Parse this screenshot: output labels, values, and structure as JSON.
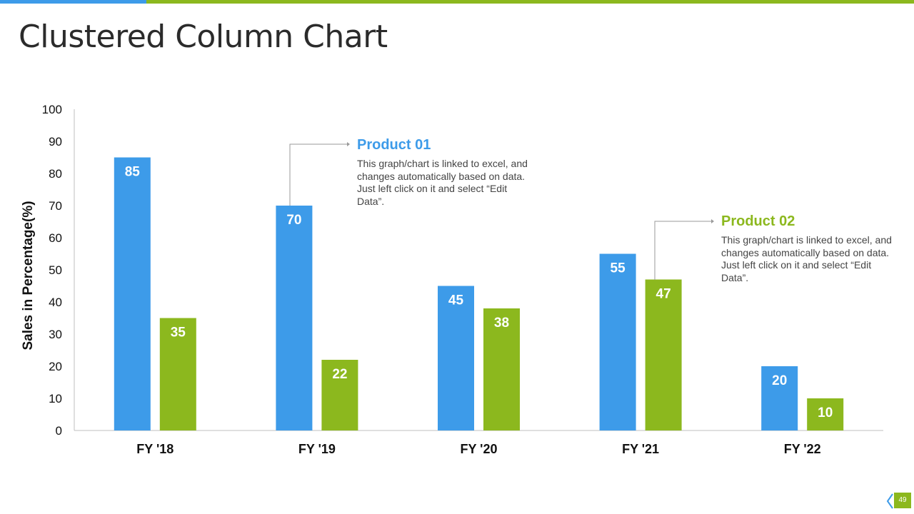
{
  "title": "Clustered Column Chart",
  "page_number": "49",
  "colors": {
    "product1": "#3d9be9",
    "product2": "#8cb81e",
    "accent_blue": "#3d9be9",
    "accent_green": "#8cb81e"
  },
  "callouts": [
    {
      "title": "Product 01",
      "text": "This graph/chart is linked to excel, and changes automatically based on data. Just left click on it and select “Edit Data”."
    },
    {
      "title": "Product 02",
      "text": "This graph/chart is linked to excel, and changes automatically based on data. Just left click on it and select “Edit Data”."
    }
  ],
  "chart_data": {
    "type": "bar",
    "title": "",
    "xlabel": "",
    "ylabel": "Sales in Percentage(%)",
    "categories": [
      "FY '18",
      "FY '19",
      "FY '20",
      "FY '21",
      "FY '22"
    ],
    "series": [
      {
        "values": [
          85,
          70,
          45,
          55,
          20
        ],
        "color": "#3d9be9"
      },
      {
        "values": [
          35,
          22,
          38,
          47,
          10
        ],
        "color": "#8cb81e"
      }
    ],
    "ylim": [
      0,
      100
    ],
    "yticks": [
      0,
      10,
      20,
      30,
      40,
      50,
      60,
      70,
      80,
      90,
      100
    ],
    "grid": false,
    "data_labels": true
  }
}
